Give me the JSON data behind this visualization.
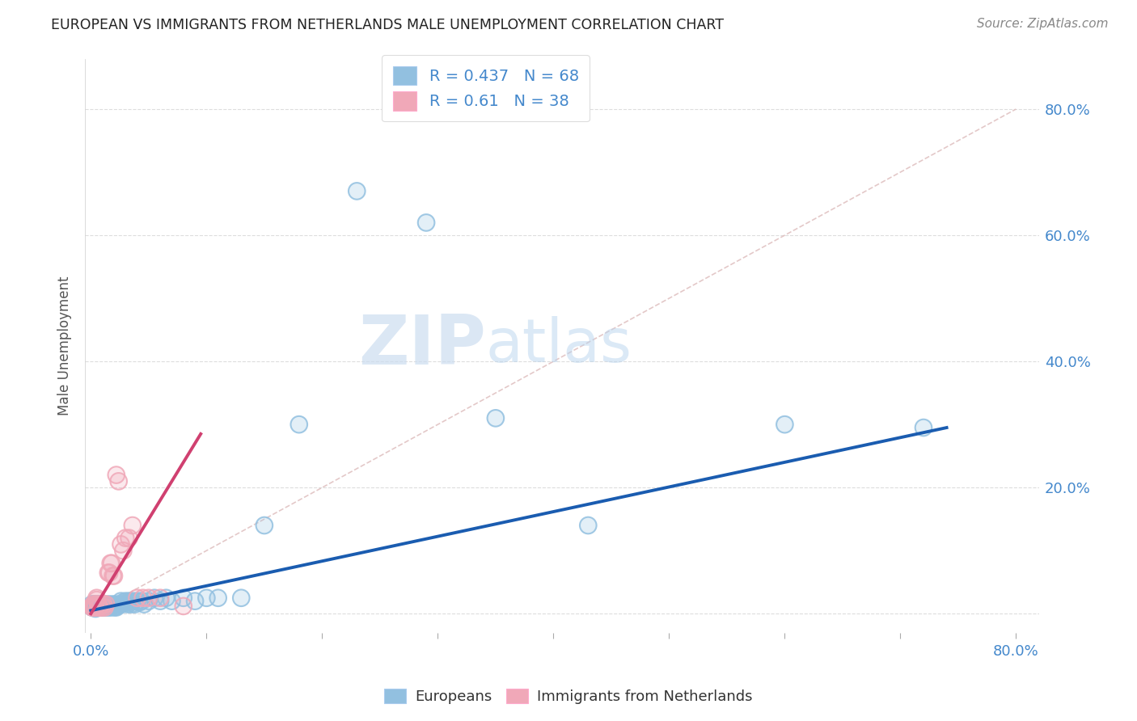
{
  "title": "EUROPEAN VS IMMIGRANTS FROM NETHERLANDS MALE UNEMPLOYMENT CORRELATION CHART",
  "source": "Source: ZipAtlas.com",
  "ylabel": "Male Unemployment",
  "xmin": 0.0,
  "xmax": 0.8,
  "ymin": -0.03,
  "ymax": 0.88,
  "yticks": [
    0.0,
    0.2,
    0.4,
    0.6,
    0.8
  ],
  "ytick_labels": [
    "",
    "20.0%",
    "40.0%",
    "60.0%",
    "80.0%"
  ],
  "europeans_color": "#92c0e0",
  "immigrants_color": "#f0a8b8",
  "trend_european_color": "#1a5cb0",
  "trend_immigrant_color": "#d04070",
  "diagonal_color": "#ddbbbb",
  "grid_color": "#dddddd",
  "R_european": 0.437,
  "N_european": 68,
  "R_immigrant": 0.61,
  "N_immigrant": 38,
  "watermark_zip": "ZIP",
  "watermark_atlas": "atlas",
  "title_color": "#222222",
  "source_color": "#888888",
  "tick_color": "#4488cc",
  "ylabel_color": "#555555",
  "europeans_x": [
    0.001,
    0.001,
    0.002,
    0.002,
    0.003,
    0.003,
    0.004,
    0.004,
    0.005,
    0.005,
    0.006,
    0.006,
    0.007,
    0.007,
    0.008,
    0.008,
    0.009,
    0.009,
    0.01,
    0.01,
    0.011,
    0.011,
    0.012,
    0.013,
    0.014,
    0.015,
    0.015,
    0.016,
    0.017,
    0.018,
    0.019,
    0.02,
    0.021,
    0.022,
    0.023,
    0.025,
    0.026,
    0.027,
    0.028,
    0.03,
    0.032,
    0.033,
    0.034,
    0.035,
    0.036,
    0.038,
    0.04,
    0.042,
    0.044,
    0.046,
    0.05,
    0.055,
    0.06,
    0.065,
    0.07,
    0.08,
    0.09,
    0.1,
    0.11,
    0.13,
    0.15,
    0.18,
    0.23,
    0.29,
    0.35,
    0.43,
    0.6,
    0.72
  ],
  "europeans_y": [
    0.01,
    0.015,
    0.01,
    0.012,
    0.01,
    0.015,
    0.012,
    0.008,
    0.01,
    0.015,
    0.01,
    0.012,
    0.01,
    0.015,
    0.01,
    0.012,
    0.01,
    0.015,
    0.01,
    0.012,
    0.01,
    0.015,
    0.012,
    0.01,
    0.012,
    0.01,
    0.015,
    0.012,
    0.01,
    0.015,
    0.012,
    0.01,
    0.015,
    0.01,
    0.012,
    0.015,
    0.02,
    0.015,
    0.018,
    0.02,
    0.015,
    0.02,
    0.018,
    0.015,
    0.02,
    0.015,
    0.02,
    0.018,
    0.02,
    0.015,
    0.02,
    0.025,
    0.02,
    0.025,
    0.02,
    0.025,
    0.02,
    0.025,
    0.025,
    0.025,
    0.14,
    0.3,
    0.67,
    0.62,
    0.31,
    0.14,
    0.3,
    0.295
  ],
  "immigrants_x": [
    0.001,
    0.001,
    0.002,
    0.002,
    0.003,
    0.003,
    0.004,
    0.004,
    0.005,
    0.005,
    0.006,
    0.006,
    0.007,
    0.007,
    0.008,
    0.009,
    0.01,
    0.011,
    0.012,
    0.013,
    0.015,
    0.016,
    0.017,
    0.018,
    0.019,
    0.02,
    0.022,
    0.024,
    0.026,
    0.028,
    0.03,
    0.033,
    0.036,
    0.04,
    0.045,
    0.05,
    0.06,
    0.08
  ],
  "immigrants_y": [
    0.01,
    0.012,
    0.01,
    0.015,
    0.01,
    0.012,
    0.01,
    0.015,
    0.022,
    0.025,
    0.01,
    0.015,
    0.01,
    0.012,
    0.01,
    0.015,
    0.01,
    0.015,
    0.01,
    0.015,
    0.065,
    0.065,
    0.08,
    0.08,
    0.06,
    0.06,
    0.22,
    0.21,
    0.11,
    0.1,
    0.12,
    0.12,
    0.14,
    0.025,
    0.025,
    0.025,
    0.025,
    0.012
  ],
  "trend_eu_x0": 0.0,
  "trend_eu_x1": 0.74,
  "trend_eu_y0": 0.005,
  "trend_eu_y1": 0.295,
  "trend_im_x0": 0.0,
  "trend_im_x1": 0.095,
  "trend_im_y0": 0.0,
  "trend_im_y1": 0.285
}
